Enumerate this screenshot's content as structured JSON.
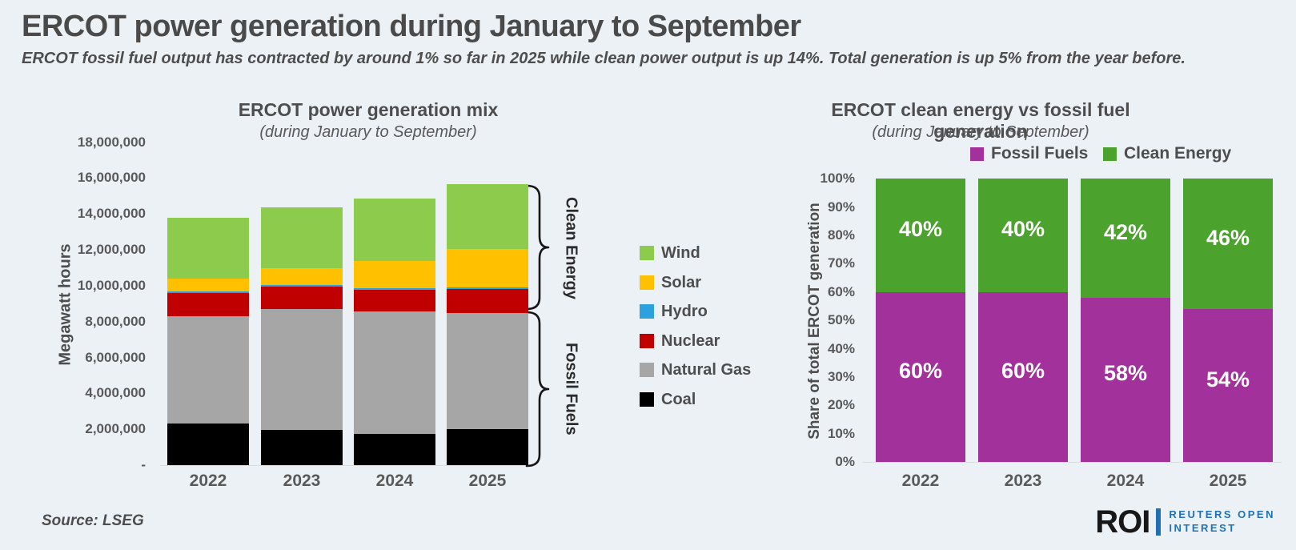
{
  "page": {
    "title": "ERCOT power generation during January to September",
    "subtitle": "ERCOT fossil fuel output has contracted by around 1% so far in 2025 while clean power output is up 14%. Total generation is up 5% from the year before.",
    "source": "Source: LSEG",
    "background_color": "#ECF1F6"
  },
  "logo": {
    "abbr": "ROI",
    "line1": "REUTERS OPEN",
    "line2": "INTEREST",
    "abbr_color": "#181818",
    "accent_color": "#1F72B8"
  },
  "chart_data": [
    {
      "id": "generation-mix",
      "type": "bar",
      "stacked": true,
      "title": "ERCOT power generation mix",
      "subtitle": "(during January to September)",
      "ylabel": "Megawatt hours",
      "ylim": [
        0,
        18000000
      ],
      "ytick_step": 2000000,
      "ytick_labels": [
        "-",
        "2,000,000",
        "4,000,000",
        "6,000,000",
        "8,000,000",
        "10,000,000",
        "12,000,000",
        "14,000,000",
        "16,000,000",
        "18,000,000"
      ],
      "grid": false,
      "categories": [
        "2022",
        "2023",
        "2024",
        "2025"
      ],
      "series": [
        {
          "name": "Coal",
          "color": "#000000",
          "values": [
            2300000,
            1970000,
            1740000,
            2010000
          ]
        },
        {
          "name": "Natural Gas",
          "color": "#A6A6A6",
          "values": [
            6000000,
            6720000,
            6820000,
            6460000
          ]
        },
        {
          "name": "Nuclear",
          "color": "#C00000",
          "values": [
            1300000,
            1260000,
            1210000,
            1360000
          ]
        },
        {
          "name": "Hydro",
          "color": "#2BA1DD",
          "values": [
            80000,
            80000,
            80000,
            80000
          ]
        },
        {
          "name": "Solar",
          "color": "#FFC000",
          "values": [
            700000,
            930000,
            1520000,
            2130000
          ]
        },
        {
          "name": "Wind",
          "color": "#8CCB4C",
          "values": [
            3420000,
            3430000,
            3490000,
            3610000
          ]
        }
      ],
      "legend_order": [
        "Wind",
        "Solar",
        "Hydro",
        "Nuclear",
        "Natural Gas",
        "Coal"
      ],
      "legend_position": "right",
      "annotations": {
        "clean": "Clean Energy",
        "fossil": "Fossil Fuels"
      }
    },
    {
      "id": "clean-vs-fossil-share",
      "type": "bar",
      "stacked": true,
      "title": "ERCOT clean energy vs fossil fuel generation",
      "subtitle": "(during January to September)",
      "ylabel": "Share of total ERCOT generation",
      "ylim": [
        0,
        100
      ],
      "ytick_step": 10,
      "ytick_labels": [
        "0%",
        "10%",
        "20%",
        "30%",
        "40%",
        "50%",
        "60%",
        "70%",
        "80%",
        "90%",
        "100%"
      ],
      "grid": false,
      "categories": [
        "2022",
        "2023",
        "2024",
        "2025"
      ],
      "series": [
        {
          "name": "Fossil Fuels",
          "color": "#A3319C",
          "values": [
            60,
            60,
            58,
            54
          ],
          "label_suffix": "%"
        },
        {
          "name": "Clean Energy",
          "color": "#4BA32E",
          "values": [
            40,
            40,
            42,
            46
          ],
          "label_suffix": "%"
        }
      ],
      "legend_position": "top",
      "data_labels": true
    }
  ]
}
